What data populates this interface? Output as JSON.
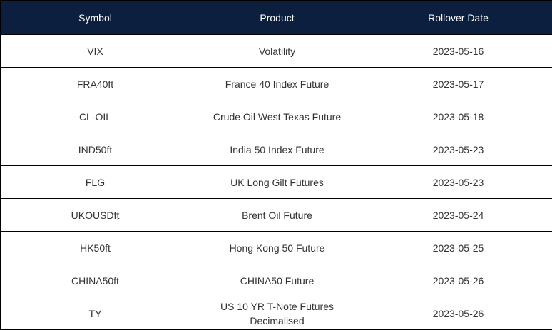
{
  "table": {
    "header": [
      "Symbol",
      "Product",
      "Rollover Date"
    ],
    "rows": [
      [
        "VIX",
        "Volatility",
        "2023-05-16"
      ],
      [
        "FRA40ft",
        "France 40 Index Future",
        "2023-05-17"
      ],
      [
        "CL-OIL",
        "Crude Oil West Texas Future",
        "2023-05-18"
      ],
      [
        "IND50ft",
        "India 50 Index Future",
        "2023-05-23"
      ],
      [
        "FLG",
        "UK Long Gilt Futures",
        "2023-05-23"
      ],
      [
        "UKOUSDft",
        "Brent Oil Future",
        "2023-05-24"
      ],
      [
        "HK50ft",
        "Hong Kong 50 Future",
        "2023-05-25"
      ],
      [
        "CHINA50ft",
        "CHINA50 Future",
        "2023-05-26"
      ],
      [
        "TY",
        "US 10 YR T-Note Futures Decimalised",
        "2023-05-26"
      ]
    ]
  }
}
